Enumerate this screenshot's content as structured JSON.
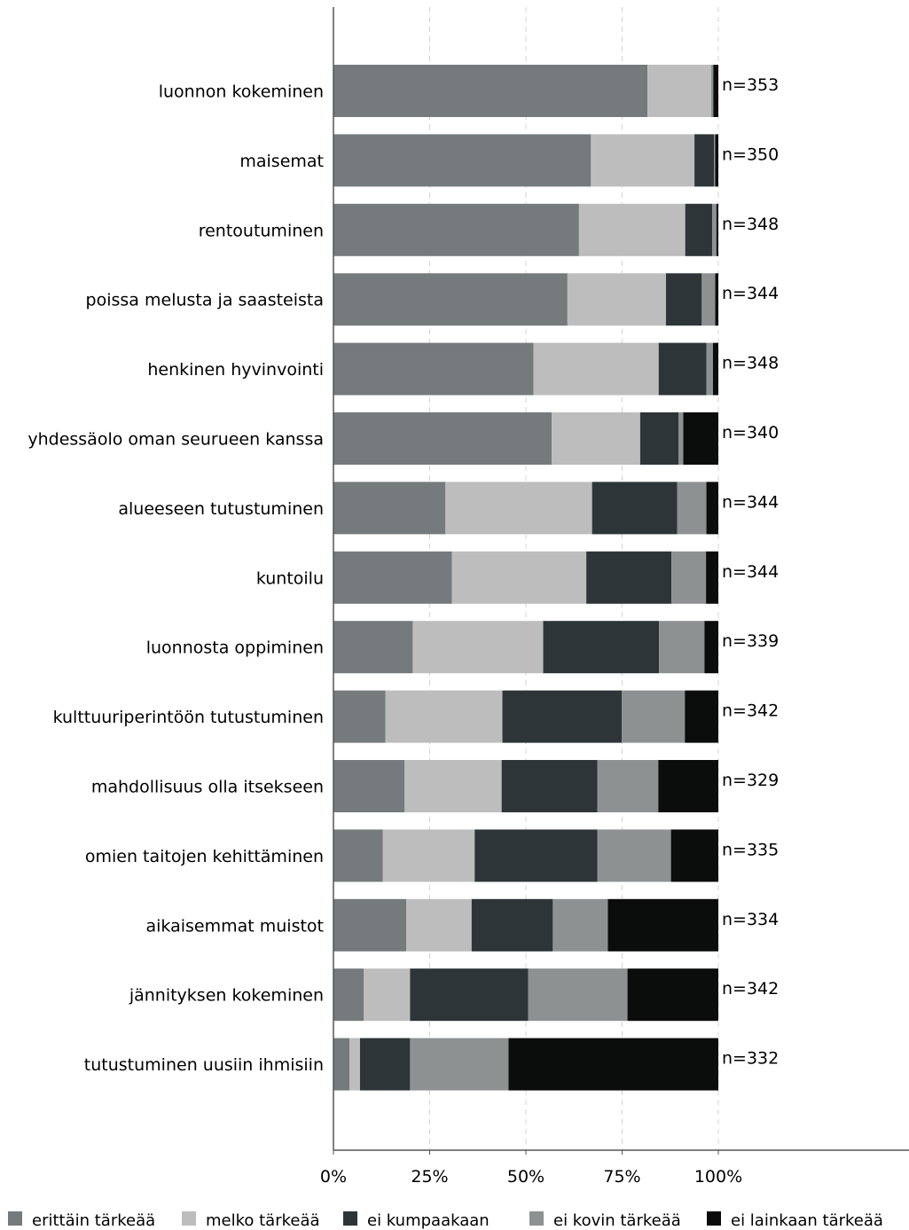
{
  "chart_data": {
    "type": "bar",
    "orientation": "horizontal",
    "stacked": true,
    "percent": true,
    "title": "",
    "xlabel": "",
    "ylabel": "",
    "xlim": [
      0,
      100
    ],
    "x_ticks": [
      "0%",
      "25%",
      "50%",
      "75%",
      "100%"
    ],
    "grid": true,
    "legend_position": "bottom",
    "categories": [
      "luonnon kokeminen",
      "maisemat",
      "rentoutuminen",
      "poissa melusta ja saasteista",
      "henkinen hyvinvointi",
      "yhdessäolo oman seurueen kanssa",
      "alueeseen tutustuminen",
      "kuntoilu",
      "luonnosta oppiminen",
      "kulttuuriperintöön tutustuminen",
      "mahdollisuus olla itsekseen",
      "omien taitojen kehittäminen",
      "aikaisemmat muistot",
      "jännityksen kokeminen",
      "tutustuminen uusiin ihmisiin"
    ],
    "n_labels": [
      "n=353",
      "n=350",
      "n=348",
      "n=344",
      "n=348",
      "n=340",
      "n=344",
      "n=344",
      "n=339",
      "n=342",
      "n=329",
      "n=335",
      "n=334",
      "n=342",
      "n=332"
    ],
    "series": [
      {
        "name": "erittäin tärkeää",
        "color": "#757a7c",
        "values": [
          81.6,
          66.9,
          63.8,
          60.8,
          52.0,
          56.7,
          29.1,
          30.8,
          20.6,
          13.5,
          18.5,
          12.8,
          18.9,
          7.9,
          4.2
        ]
      },
      {
        "name": "melko tärkeää",
        "color": "#bdbdbd",
        "values": [
          16.5,
          26.9,
          27.6,
          25.6,
          32.5,
          23.0,
          38.1,
          34.9,
          33.9,
          30.4,
          25.2,
          23.9,
          17.0,
          12.0,
          2.7
        ]
      },
      {
        "name": "ei kumpaakaan",
        "color": "#2d3538",
        "values": [
          0.0,
          5.1,
          7.0,
          9.3,
          12.4,
          10.0,
          22.1,
          22.1,
          30.1,
          31.0,
          24.9,
          31.9,
          21.1,
          30.7,
          13.0
        ]
      },
      {
        "name": "ei kovin tärkeää",
        "color": "#8d9191",
        "values": [
          0.6,
          0.3,
          1.1,
          3.5,
          1.7,
          1.2,
          7.6,
          9.0,
          11.8,
          16.4,
          15.8,
          19.1,
          14.3,
          25.8,
          25.6
        ]
      },
      {
        "name": "ei lainkaan tärkeää",
        "color": "#0b0c0c",
        "values": [
          1.3,
          0.8,
          0.5,
          0.8,
          1.4,
          9.1,
          3.1,
          3.2,
          3.6,
          8.7,
          15.6,
          12.3,
          28.7,
          23.6,
          54.5
        ]
      }
    ]
  }
}
